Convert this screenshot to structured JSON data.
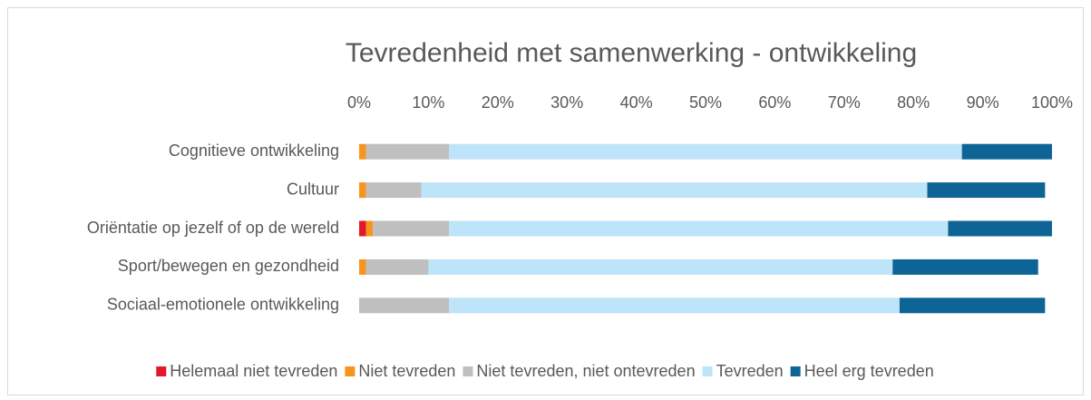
{
  "chart_data": {
    "type": "stacked-bar-horizontal",
    "title": "Tevredenheid met samenwerking - ontwikkeling",
    "categories": [
      "Cognitieve ontwikkeling",
      "Cultuur",
      "Oriëntatie op jezelf of op de wereld",
      "Sport/bewegen en gezondheid",
      "Sociaal-emotionele ontwikkeling"
    ],
    "series": [
      {
        "name": "Helemaal niet tevreden",
        "color": "#e3192b",
        "values": [
          0,
          0,
          1,
          0,
          0
        ]
      },
      {
        "name": "Niet tevreden",
        "color": "#f7941d",
        "values": [
          1,
          1,
          1,
          1,
          0
        ]
      },
      {
        "name": "Niet tevreden, niet ontevreden",
        "color": "#bfbfbf",
        "values": [
          12,
          8,
          11,
          9,
          13
        ]
      },
      {
        "name": "Tevreden",
        "color": "#bde4f9",
        "values": [
          74,
          73,
          72,
          67,
          65
        ]
      },
      {
        "name": "Heel erg tevreden",
        "color": "#0e6496",
        "values": [
          13,
          17,
          15,
          21,
          21
        ]
      }
    ],
    "xlim": [
      0,
      100
    ],
    "xticks": [
      {
        "value": 0,
        "label": "0%"
      },
      {
        "value": 10,
        "label": "10%"
      },
      {
        "value": 20,
        "label": "20%"
      },
      {
        "value": 30,
        "label": "30%"
      },
      {
        "value": 40,
        "label": "40%"
      },
      {
        "value": 50,
        "label": "50%"
      },
      {
        "value": 60,
        "label": "60%"
      },
      {
        "value": 70,
        "label": "70%"
      },
      {
        "value": 80,
        "label": "80%"
      },
      {
        "value": 90,
        "label": "90%"
      },
      {
        "value": 100,
        "label": "100%"
      }
    ],
    "grid": false,
    "legend": "bottom"
  }
}
